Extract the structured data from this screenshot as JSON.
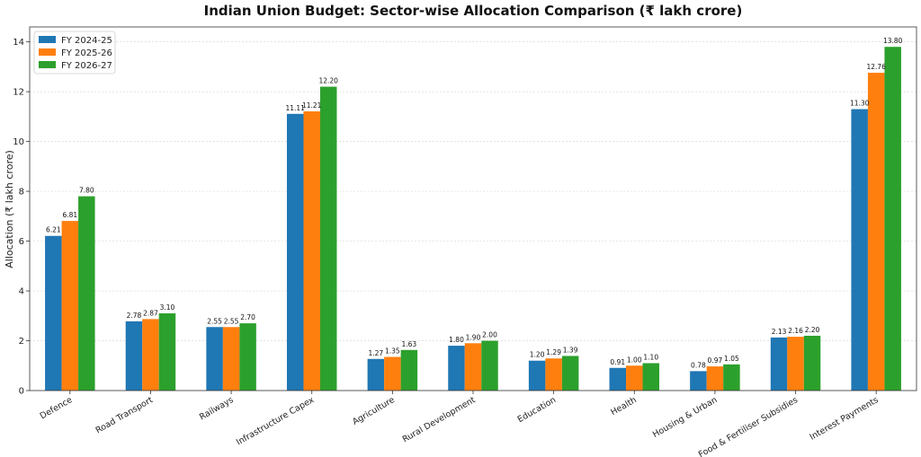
{
  "chart_data": {
    "type": "bar",
    "title": "Indian Union Budget: Sector-wise Allocation Comparison (₹ lakh crore)",
    "xlabel": "",
    "ylabel": "Allocation (₹ lakh crore)",
    "ylim": [
      0,
      14.6
    ],
    "yticks": [
      0,
      2,
      4,
      6,
      8,
      10,
      12,
      14
    ],
    "grid": true,
    "legend_position": "top-left",
    "categories": [
      "Defence",
      "Road Transport",
      "Railways",
      "Infrastructure Capex",
      "Agriculture",
      "Rural Development",
      "Education",
      "Health",
      "Housing & Urban",
      "Food & Fertiliser Subsidies",
      "Interest Payments"
    ],
    "series": [
      {
        "name": "FY 2024-25",
        "color": "#1f77b4",
        "values": [
          6.21,
          2.78,
          2.55,
          11.11,
          1.27,
          1.8,
          1.2,
          0.91,
          0.78,
          2.13,
          11.3
        ]
      },
      {
        "name": "FY 2025-26",
        "color": "#ff7f0e",
        "values": [
          6.81,
          2.87,
          2.55,
          11.21,
          1.35,
          1.9,
          1.29,
          1.0,
          0.97,
          2.16,
          12.76
        ]
      },
      {
        "name": "FY 2026-27",
        "color": "#2ca02c",
        "values": [
          7.8,
          3.1,
          2.7,
          12.2,
          1.63,
          2.0,
          1.39,
          1.1,
          1.05,
          2.2,
          13.8
        ]
      }
    ]
  }
}
